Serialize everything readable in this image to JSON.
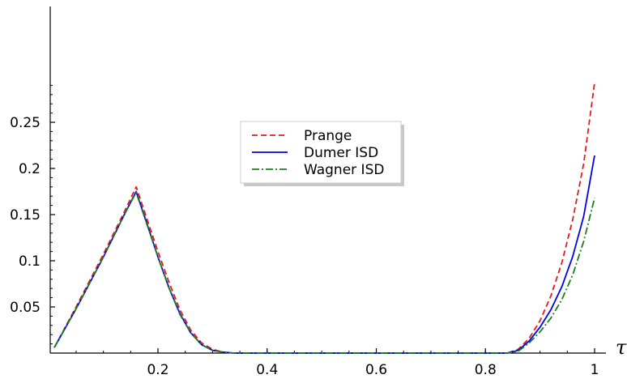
{
  "chart_data": {
    "type": "line",
    "xlabel": "τ",
    "ylabel": "",
    "xlim": [
      0.01,
      1.02
    ],
    "ylim": [
      0,
      0.3
    ],
    "x_ticks": [
      {
        "value": 0.2,
        "label": "0.2"
      },
      {
        "value": 0.4,
        "label": "0.4"
      },
      {
        "value": 0.6,
        "label": "0.6"
      },
      {
        "value": 0.8,
        "label": "0.8"
      },
      {
        "value": 1.0,
        "label": "1"
      }
    ],
    "y_ticks": [
      {
        "value": 0.05,
        "label": "0.05"
      },
      {
        "value": 0.1,
        "label": "0.1"
      },
      {
        "value": 0.15,
        "label": "0.15"
      },
      {
        "value": 0.2,
        "label": "0.2"
      },
      {
        "value": 0.25,
        "label": "0.25"
      }
    ],
    "grid": false,
    "legend_position": "center-top",
    "series": [
      {
        "name": "Prange",
        "color": "#e41a1c",
        "style": "dashed",
        "x": [
          0.01,
          0.05,
          0.1,
          0.14,
          0.16,
          0.18,
          0.2,
          0.22,
          0.24,
          0.26,
          0.28,
          0.3,
          0.32,
          0.34,
          0.4,
          0.5,
          0.6,
          0.7,
          0.8,
          0.84,
          0.86,
          0.88,
          0.9,
          0.92,
          0.94,
          0.96,
          0.98,
          1.0
        ],
        "y": [
          0.006,
          0.05,
          0.107,
          0.155,
          0.18,
          0.145,
          0.11,
          0.077,
          0.047,
          0.025,
          0.011,
          0.004,
          0.001,
          0.0,
          0.0,
          0.0,
          0.0,
          0.0,
          0.0,
          0.0,
          0.004,
          0.016,
          0.035,
          0.062,
          0.098,
          0.145,
          0.205,
          0.293
        ]
      },
      {
        "name": "Dumer ISD",
        "color": "#0000ee",
        "style": "solid",
        "x": [
          0.01,
          0.05,
          0.1,
          0.14,
          0.16,
          0.18,
          0.2,
          0.22,
          0.24,
          0.26,
          0.28,
          0.3,
          0.32,
          0.34,
          0.4,
          0.5,
          0.6,
          0.7,
          0.8,
          0.84,
          0.86,
          0.88,
          0.9,
          0.92,
          0.94,
          0.96,
          0.98,
          1.0
        ],
        "y": [
          0.006,
          0.048,
          0.104,
          0.152,
          0.175,
          0.14,
          0.104,
          0.071,
          0.043,
          0.022,
          0.009,
          0.003,
          0.001,
          0.0,
          0.0,
          0.0,
          0.0,
          0.0,
          0.0,
          0.0,
          0.003,
          0.013,
          0.028,
          0.047,
          0.072,
          0.105,
          0.148,
          0.214
        ]
      },
      {
        "name": "Wagner ISD",
        "color": "#1a801a",
        "style": "dashdot",
        "x": [
          0.01,
          0.05,
          0.1,
          0.14,
          0.16,
          0.18,
          0.2,
          0.22,
          0.24,
          0.26,
          0.28,
          0.3,
          0.32,
          0.34,
          0.4,
          0.5,
          0.6,
          0.7,
          0.8,
          0.84,
          0.86,
          0.88,
          0.9,
          0.92,
          0.94,
          0.96,
          0.98,
          1.0
        ],
        "y": [
          0.006,
          0.048,
          0.104,
          0.152,
          0.174,
          0.139,
          0.104,
          0.071,
          0.042,
          0.022,
          0.009,
          0.003,
          0.001,
          0.0,
          0.0,
          0.0,
          0.0,
          0.0,
          0.0,
          0.0,
          0.002,
          0.011,
          0.023,
          0.038,
          0.058,
          0.085,
          0.121,
          0.168
        ]
      }
    ]
  }
}
